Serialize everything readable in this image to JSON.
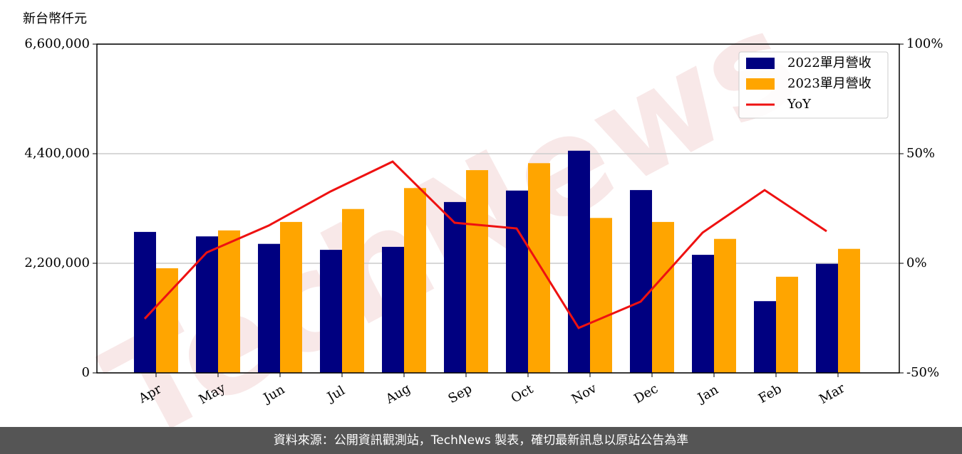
{
  "chart_data": {
    "type": "bar_line",
    "y_label": "新台幣仟元",
    "watermark": "TechNews",
    "source": "資料來源：公開資訊觀測站，TechNews 製表，確切最新訊息以原站公告為準",
    "categories": [
      "Apr",
      "May",
      "Jun",
      "Jul",
      "Aug",
      "Sep",
      "Oct",
      "Nov",
      "Dec",
      "Jan",
      "Feb",
      "Mar"
    ],
    "series": [
      {
        "name": "2022單月營收",
        "color": "#000080",
        "kind": "bar",
        "values": [
          2830000,
          2740000,
          2590000,
          2470000,
          2530000,
          3430000,
          3660000,
          4460000,
          3670000,
          2370000,
          1440000,
          2190000
        ]
      },
      {
        "name": "2023單月營收",
        "color": "#ffa500",
        "kind": "bar",
        "values": [
          2100000,
          2860000,
          3030000,
          3290000,
          3710000,
          4070000,
          4210000,
          3110000,
          3030000,
          2690000,
          1930000,
          2490000
        ]
      },
      {
        "name": "YoY",
        "color": "#ee1111",
        "kind": "line",
        "axis": "y2",
        "values": [
          -25.3,
          4.9,
          17.2,
          32.8,
          46.4,
          18.5,
          15.9,
          -29.5,
          -17.5,
          14.0,
          33.4,
          14.6
        ]
      }
    ],
    "ylim": [
      0,
      6600000
    ],
    "yticks": [
      0,
      {
        "value": 2200000,
        "label": "2,200,000"
      },
      {
        "value": 4400000,
        "label": "4,400,000"
      },
      {
        "value": 6600000,
        "label": "6,600,000"
      }
    ],
    "y2lim": [
      -50,
      100
    ],
    "y2ticks": [
      {
        "value": -50,
        "label": "-50%"
      },
      {
        "value": 0,
        "label": "0%"
      },
      {
        "value": 50,
        "label": "50%"
      },
      {
        "value": 100,
        "label": "100%"
      }
    ],
    "grid": true,
    "legend": "upper right"
  }
}
